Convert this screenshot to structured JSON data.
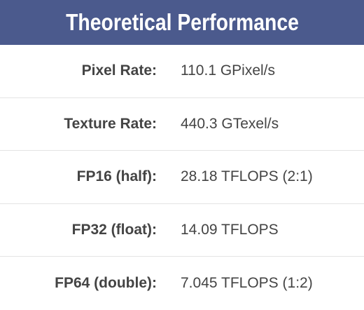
{
  "header": {
    "title": "Theoretical Performance"
  },
  "table": {
    "rows": [
      [
        "Pixel Rate:",
        "110.1 GPixel/s"
      ],
      [
        "Texture Rate:",
        "440.3 GTexel/s"
      ],
      [
        "FP16 (half):",
        "28.18 TFLOPS (2:1)"
      ],
      [
        "FP32 (float):",
        "14.09 TFLOPS"
      ],
      [
        "FP64 (double):",
        "7.045 TFLOPS (1:2)"
      ]
    ]
  }
}
